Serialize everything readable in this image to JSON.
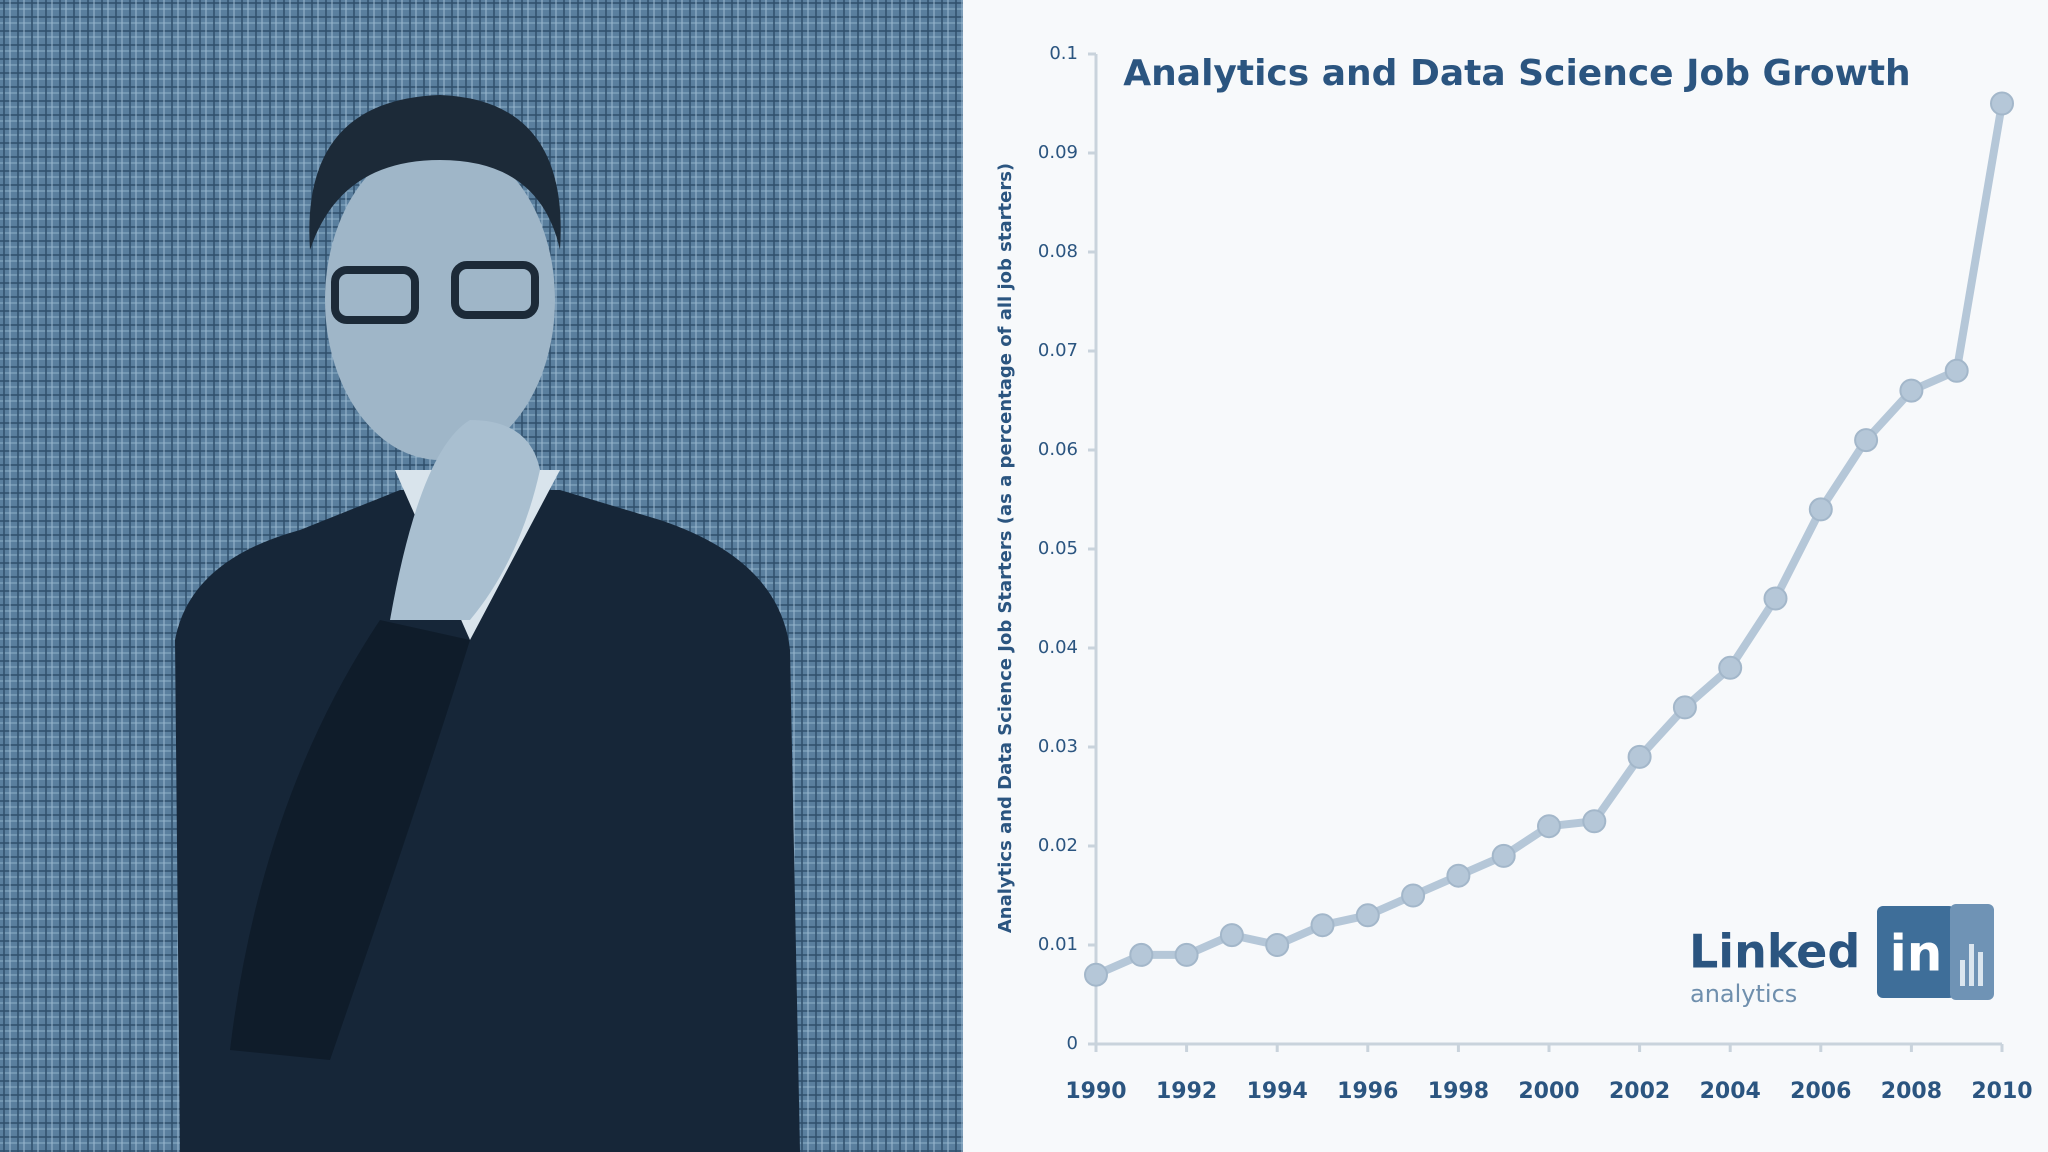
{
  "chart_data": {
    "type": "line",
    "title": "Analytics and Data Science Job Growth",
    "y_label": "Analytics and Data Science Job Starters (as a percentage of all job starters)",
    "x": [
      1990,
      1991,
      1992,
      1993,
      1994,
      1995,
      1996,
      1997,
      1998,
      1999,
      2000,
      2001,
      2002,
      2003,
      2004,
      2005,
      2006,
      2007,
      2008,
      2009,
      2010
    ],
    "values": [
      0.007,
      0.009,
      0.009,
      0.011,
      0.01,
      0.012,
      0.013,
      0.015,
      0.017,
      0.019,
      0.022,
      0.0225,
      0.029,
      0.034,
      0.038,
      0.045,
      0.054,
      0.061,
      0.066,
      0.068,
      0.095
    ],
    "color": "#b5c7d8",
    "xlim": [
      1990,
      2010
    ],
    "xticks": [
      1990,
      1992,
      1994,
      1996,
      1998,
      2000,
      2002,
      2004,
      2006,
      2008,
      2010
    ],
    "ylim": [
      0,
      0.1
    ],
    "yticks": [
      0,
      0.01,
      0.02,
      0.03,
      0.04,
      0.05,
      0.06,
      0.07,
      0.08,
      0.09,
      0.1
    ],
    "grid": false
  },
  "logo": {
    "word": "Linked",
    "badge": "in",
    "subtitle": "analytics"
  }
}
